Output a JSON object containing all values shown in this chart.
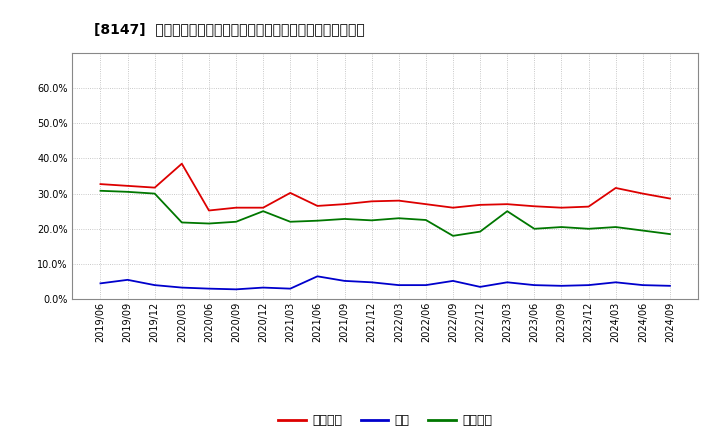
{
  "title": "[8147]  売上債権、在庫、買入債務の総資産に対する比率の推移",
  "x_labels": [
    "2019/06",
    "2019/09",
    "2019/12",
    "2020/03",
    "2020/06",
    "2020/09",
    "2020/12",
    "2021/03",
    "2021/06",
    "2021/09",
    "2021/12",
    "2022/03",
    "2022/06",
    "2022/09",
    "2022/12",
    "2023/03",
    "2023/06",
    "2023/09",
    "2023/12",
    "2024/03",
    "2024/06",
    "2024/09"
  ],
  "uriage": [
    0.327,
    0.322,
    0.317,
    0.385,
    0.252,
    0.26,
    0.26,
    0.302,
    0.265,
    0.27,
    0.278,
    0.28,
    0.27,
    0.26,
    0.268,
    0.27,
    0.264,
    0.26,
    0.263,
    0.316,
    0.3,
    0.286
  ],
  "zaiko": [
    0.045,
    0.055,
    0.04,
    0.033,
    0.03,
    0.028,
    0.033,
    0.03,
    0.065,
    0.052,
    0.048,
    0.04,
    0.04,
    0.052,
    0.035,
    0.048,
    0.04,
    0.038,
    0.04,
    0.048,
    0.04,
    0.038
  ],
  "kaiire": [
    0.308,
    0.305,
    0.3,
    0.218,
    0.215,
    0.22,
    0.25,
    0.22,
    0.223,
    0.228,
    0.224,
    0.23,
    0.225,
    0.18,
    0.192,
    0.25,
    0.2,
    0.205,
    0.2,
    0.205,
    0.195,
    0.185
  ],
  "color_uriage": "#dd0000",
  "color_zaiko": "#0000cc",
  "color_kaiire": "#007700",
  "ylim_min": 0.0,
  "ylim_max": 0.7,
  "yticks": [
    0.0,
    0.1,
    0.2,
    0.3,
    0.4,
    0.5,
    0.6
  ],
  "background_color": "#ffffff",
  "plot_bg_color": "#ffffff",
  "grid_color": "#999999",
  "legend_uriage": "売上債権",
  "legend_zaiko": "在庫",
  "legend_kaiire": "買入債務",
  "title_fontsize": 10,
  "tick_fontsize": 7,
  "legend_fontsize": 9,
  "linewidth": 1.3
}
